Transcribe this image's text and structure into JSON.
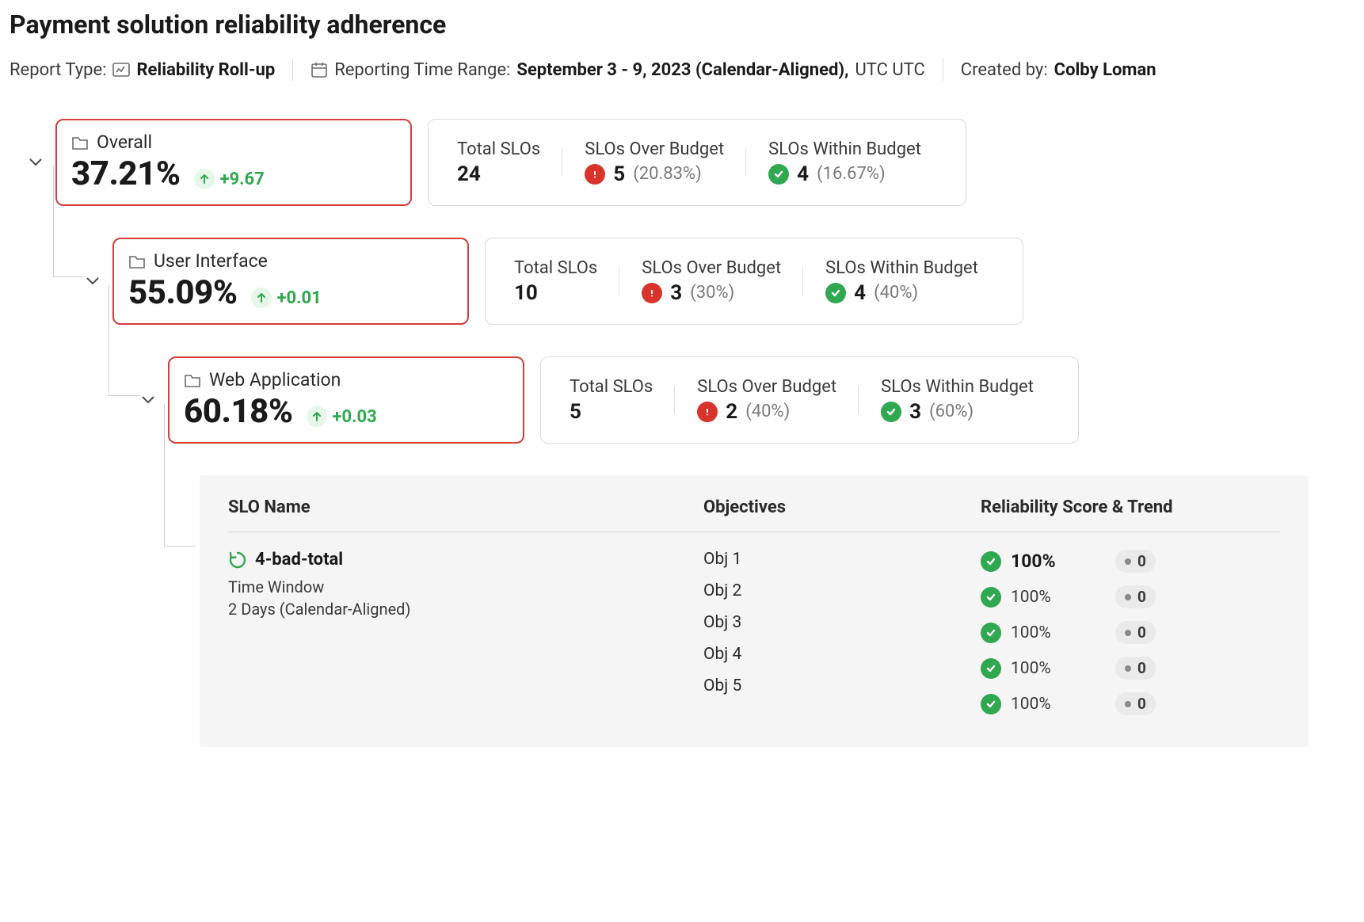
{
  "page_title": "Payment solution reliability adherence",
  "meta": {
    "report_type_label": "Report Type:",
    "report_type_value": "Reliability Roll-up",
    "time_range_label": "Reporting Time Range:",
    "time_range_value": "September 3 - 9, 2023 (Calendar-Aligned),",
    "time_range_tz": "UTC UTC",
    "created_by_label": "Created by:",
    "created_by_value": "Colby Loman"
  },
  "colors": {
    "danger": "#d9342b",
    "success": "#2fa84f",
    "success_bg": "#e6f7ea",
    "border_highlight": "#d63c3c",
    "border_neutral": "#d9d9d9",
    "text_muted": "#7a7a7a",
    "panel_bg": "#f5f5f5"
  },
  "labels": {
    "total_slos": "Total SLOs",
    "over_budget": "SLOs Over Budget",
    "within_budget": "SLOs Within Budget",
    "slo_name": "SLO Name",
    "objectives": "Objectives",
    "score_trend": "Reliability Score & Trend",
    "time_window": "Time Window"
  },
  "rows": [
    {
      "name": "Overall",
      "percent": "37.21%",
      "trend": "+9.67",
      "total": "24",
      "over_count": "5",
      "over_pct": "(20.83%)",
      "within_count": "4",
      "within_pct": "(16.67%)"
    },
    {
      "name": "User Interface",
      "percent": "55.09%",
      "trend": "+0.01",
      "total": "10",
      "over_count": "3",
      "over_pct": "(30%)",
      "within_count": "4",
      "within_pct": "(40%)"
    },
    {
      "name": "Web Application",
      "percent": "60.18%",
      "trend": "+0.03",
      "total": "5",
      "over_count": "2",
      "over_pct": "(40%)",
      "within_count": "3",
      "within_pct": "(60%)"
    }
  ],
  "slo": {
    "name": "4-bad-total",
    "time_window_value": "2 Days (Calendar-Aligned)",
    "objectives": [
      {
        "label": "Obj 1",
        "score": "100%",
        "bold": true,
        "trend": "0"
      },
      {
        "label": "Obj 2",
        "score": "100%",
        "bold": false,
        "trend": "0"
      },
      {
        "label": "Obj 3",
        "score": "100%",
        "bold": false,
        "trend": "0"
      },
      {
        "label": "Obj 4",
        "score": "100%",
        "bold": false,
        "trend": "0"
      },
      {
        "label": "Obj 5",
        "score": "100%",
        "bold": false,
        "trend": "0"
      }
    ]
  }
}
